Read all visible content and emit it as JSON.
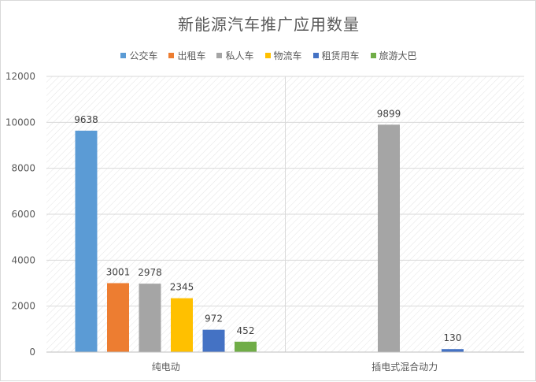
{
  "chart_data": {
    "type": "bar",
    "title": "新能源汽车推广应用数量",
    "categories": [
      "纯电动",
      "插电式混合动力"
    ],
    "series": [
      {
        "name": "公交车",
        "color": "#5b9bd5",
        "values": [
          9638,
          null
        ]
      },
      {
        "name": "出租车",
        "color": "#ed7d31",
        "values": [
          3001,
          null
        ]
      },
      {
        "name": "私人车",
        "color": "#a5a5a5",
        "values": [
          2978,
          9899
        ]
      },
      {
        "name": "物流车",
        "color": "#ffc000",
        "values": [
          2345,
          null
        ]
      },
      {
        "name": "租赁用车",
        "color": "#4472c4",
        "values": [
          972,
          130
        ]
      },
      {
        "name": "旅游大巴",
        "color": "#70ad47",
        "values": [
          452,
          null
        ]
      }
    ],
    "ylim": [
      0,
      12000
    ],
    "yticks": [
      0,
      2000,
      4000,
      6000,
      8000,
      10000,
      12000
    ],
    "grid": true,
    "legend": "top",
    "xlabel": "",
    "ylabel": ""
  }
}
